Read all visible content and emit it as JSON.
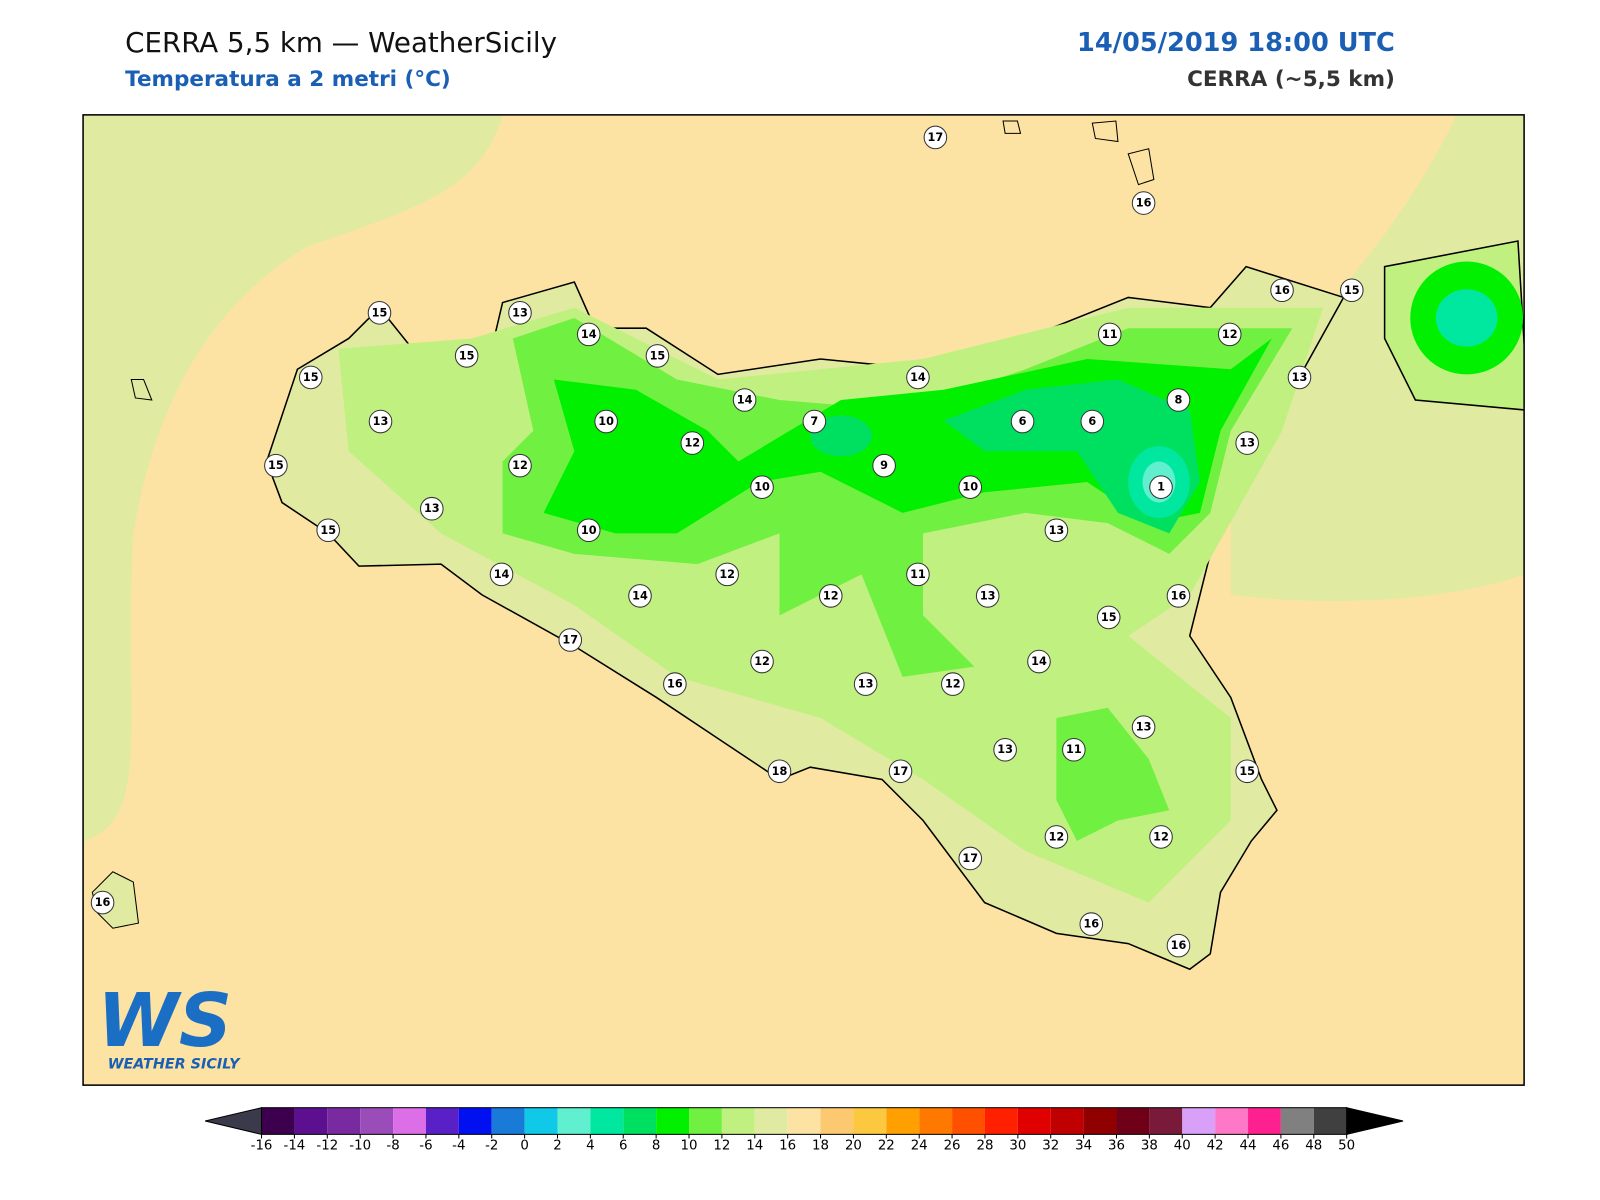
{
  "header": {
    "title": "CERRA 5,5 km — WeatherSicily",
    "subtitle": "Temperatura a 2 metri (°C)",
    "datetime": "14/05/2019 18:00 UTC",
    "model": "CERRA (~5,5 km)"
  },
  "map": {
    "stations": [
      17,
      16,
      15,
      13,
      14,
      15,
      15,
      15,
      14,
      14,
      11,
      12,
      16,
      15,
      13,
      8,
      13,
      10,
      7,
      6,
      6,
      12,
      13,
      15,
      12,
      9,
      10,
      10,
      1,
      13,
      15,
      10,
      13,
      14,
      12,
      11,
      14,
      12,
      13,
      16,
      15,
      17,
      12,
      14,
      16,
      13,
      12,
      13,
      13,
      11,
      15,
      18,
      17,
      12,
      12,
      17,
      16,
      16,
      16
    ]
  },
  "colorbar": {
    "ticks": [
      -16,
      -14,
      -12,
      -10,
      -8,
      -6,
      -4,
      -2,
      0,
      2,
      4,
      6,
      8,
      10,
      12,
      14,
      16,
      18,
      20,
      22,
      24,
      26,
      28,
      30,
      32,
      34,
      36,
      38,
      40,
      42,
      44,
      46,
      48,
      50
    ],
    "colors": [
      "#3d004f",
      "#5c1090",
      "#7a2aa0",
      "#9a4db8",
      "#dc6fe8",
      "#5a20c8",
      "#0010f0",
      "#1a7ad8",
      "#10c8e8",
      "#60f0d0",
      "#00e8a0",
      "#00e060",
      "#00f000",
      "#70f040",
      "#c0f080",
      "#e0eaa0",
      "#fde3a3",
      "#fcc870",
      "#fcc840",
      "#ffa000",
      "#ff7800",
      "#ff5000",
      "#ff2000",
      "#e00000",
      "#c00000",
      "#900000",
      "#700018",
      "#7a1a3a",
      "#d8a0f8",
      "#ff78c8",
      "#ff2090",
      "#808080",
      "#404040"
    ],
    "under_color": "#3a3a4a",
    "over_color": "#000000"
  },
  "logo": {
    "mark": "WS",
    "text": "WEATHER SICILY"
  }
}
